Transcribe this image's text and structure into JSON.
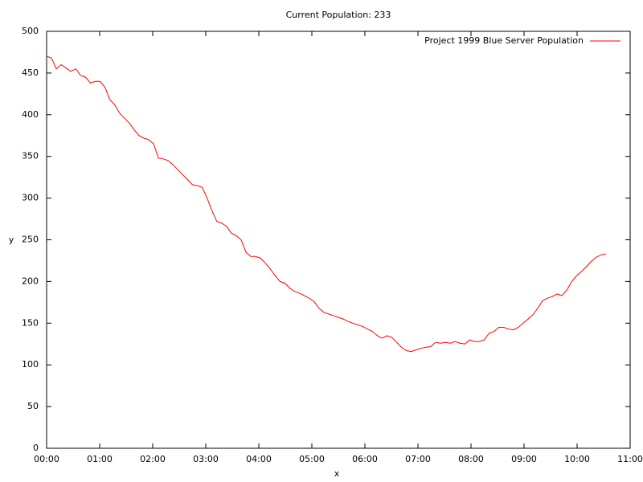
{
  "chart_data": {
    "type": "line",
    "title": "Current Population: 233",
    "x_label": "x",
    "y_label": "y",
    "legend_position": "top-right",
    "x": [
      0,
      5.5,
      11,
      16.5,
      22,
      27.5,
      33,
      38.5,
      44,
      49.5,
      55,
      60.5,
      66,
      71.5,
      77,
      82.5,
      88,
      93.5,
      99,
      104.5,
      110,
      115.5,
      121,
      126.5,
      132,
      137.5,
      143,
      148.5,
      154,
      159.5,
      165,
      170.5,
      176,
      181.5,
      187,
      192.5,
      198,
      203.5,
      209,
      214.5,
      220,
      225.5,
      231,
      236.5,
      242,
      247.5,
      253,
      258.5,
      264,
      269.5,
      275,
      280.5,
      286,
      291.5,
      297,
      302.5,
      308,
      313.5,
      319,
      324.5,
      330,
      335.5,
      341,
      346.5,
      352,
      357.5,
      363,
      368.5,
      374,
      379.5,
      385,
      390.5,
      396,
      401.5,
      407,
      412.5,
      418,
      423.5,
      429,
      434.5,
      440,
      445.5,
      451,
      456.5,
      462,
      467.5,
      473,
      478.5,
      484,
      489.5,
      495,
      500.5,
      506,
      511.5,
      517,
      522.5,
      528,
      533.5,
      539,
      544.5,
      550,
      555.5,
      561,
      566.5,
      572,
      577.5,
      583,
      588.5,
      594,
      599.5,
      605,
      610.5,
      616,
      621.5,
      627,
      632.5
    ],
    "series": [
      {
        "name": "Project 1999 Blue Server Population",
        "color": "#ff0000",
        "values": [
          470,
          468,
          455,
          460,
          456,
          452,
          455,
          447,
          445,
          438,
          440,
          440,
          433,
          418,
          412,
          402,
          396,
          390,
          382,
          375,
          372,
          370,
          365,
          348,
          347,
          345,
          340,
          334,
          328,
          322,
          316,
          315,
          313,
          300,
          285,
          272,
          270,
          266,
          258,
          255,
          250,
          235,
          230,
          230,
          228,
          222,
          215,
          207,
          200,
          198,
          192,
          188,
          186,
          183,
          180,
          176,
          168,
          163,
          161,
          159,
          157,
          155,
          152,
          150,
          148,
          146,
          143,
          140,
          135,
          132,
          135,
          133,
          127,
          121,
          117,
          116,
          118,
          120,
          121,
          122,
          127,
          126,
          127,
          126,
          128,
          126,
          125,
          130,
          128,
          128,
          130,
          138,
          140,
          145,
          145,
          143,
          142,
          145,
          150,
          155,
          160,
          168,
          177,
          180,
          182,
          185,
          183,
          190,
          200,
          207,
          212,
          218,
          224,
          229,
          232,
          233
        ]
      }
    ],
    "xlim": [
      0,
      660
    ],
    "xticks": [
      {
        "value": 0,
        "label": "00:00"
      },
      {
        "value": 60,
        "label": "01:00"
      },
      {
        "value": 120,
        "label": "02:00"
      },
      {
        "value": 180,
        "label": "03:00"
      },
      {
        "value": 240,
        "label": "04:00"
      },
      {
        "value": 300,
        "label": "05:00"
      },
      {
        "value": 360,
        "label": "06:00"
      },
      {
        "value": 420,
        "label": "07:00"
      },
      {
        "value": 480,
        "label": "08:00"
      },
      {
        "value": 540,
        "label": "09:00"
      },
      {
        "value": 600,
        "label": "10:00"
      },
      {
        "value": 660,
        "label": "11:00"
      }
    ],
    "ylim": [
      0,
      500
    ],
    "yticks": [
      0,
      50,
      100,
      150,
      200,
      250,
      300,
      350,
      400,
      450,
      500
    ],
    "grid": false
  }
}
